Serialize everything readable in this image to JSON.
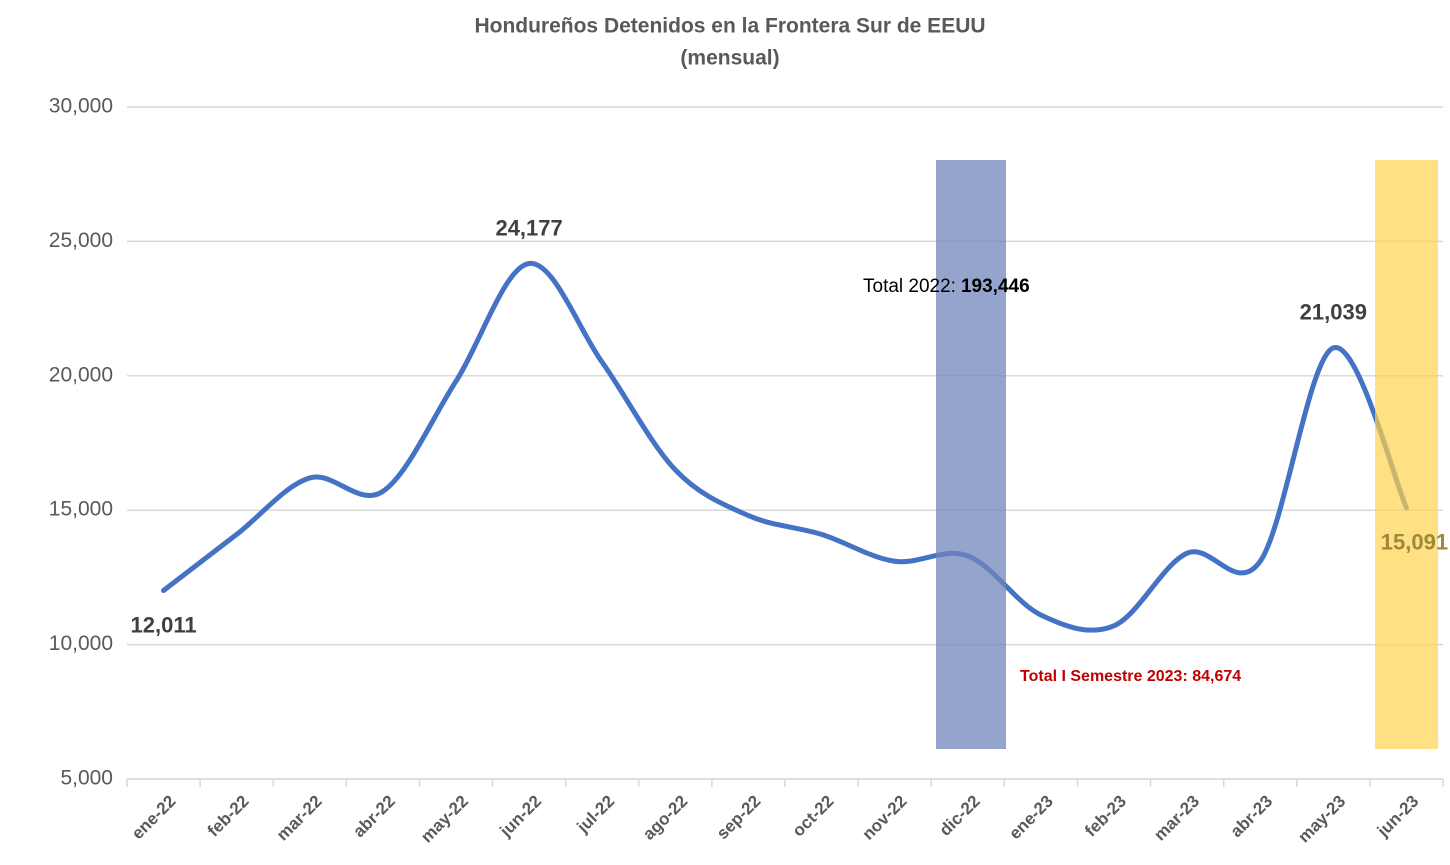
{
  "chart_data": {
    "type": "line",
    "title": "Hondureños Detenidos en la Frontera Sur de EEUU",
    "subtitle": "(mensual)",
    "categories": [
      "ene-22",
      "feb-22",
      "mar-22",
      "abr-22",
      "may-22",
      "jun-22",
      "jul-22",
      "ago-22",
      "sep-22",
      "oct-22",
      "nov-22",
      "dic-22",
      "ene-23",
      "feb-23",
      "mar-23",
      "abr-23",
      "may-23",
      "jun-23"
    ],
    "series": [
      {
        "name": "Hondureños Detenidos",
        "color": "#4472c4",
        "values": [
          12011,
          14100,
          16200,
          15700,
          19800,
          24177,
          20500,
          16500,
          14800,
          14100,
          13100,
          13300,
          11100,
          10700,
          13400,
          13100,
          21039,
          15091
        ],
        "value_labels": [
          "12,011",
          null,
          null,
          null,
          null,
          "24,177",
          null,
          null,
          null,
          null,
          null,
          null,
          null,
          null,
          null,
          null,
          "21,039",
          "15,091"
        ]
      }
    ],
    "ylim": [
      5000,
      30000
    ],
    "yticks": [
      {
        "value": 5000,
        "label": "5,000"
      },
      {
        "value": 10000,
        "label": "10,000"
      },
      {
        "value": 15000,
        "label": "15,000"
      },
      {
        "value": 20000,
        "label": "20,000"
      },
      {
        "value": 25000,
        "label": "25,000"
      },
      {
        "value": 30000,
        "label": "30,000"
      }
    ],
    "grid": true,
    "annotations": [
      {
        "text": "Total 2022:",
        "bold": "193,446"
      },
      {
        "text": "Total I Semestre 2023: 84,674"
      }
    ]
  }
}
